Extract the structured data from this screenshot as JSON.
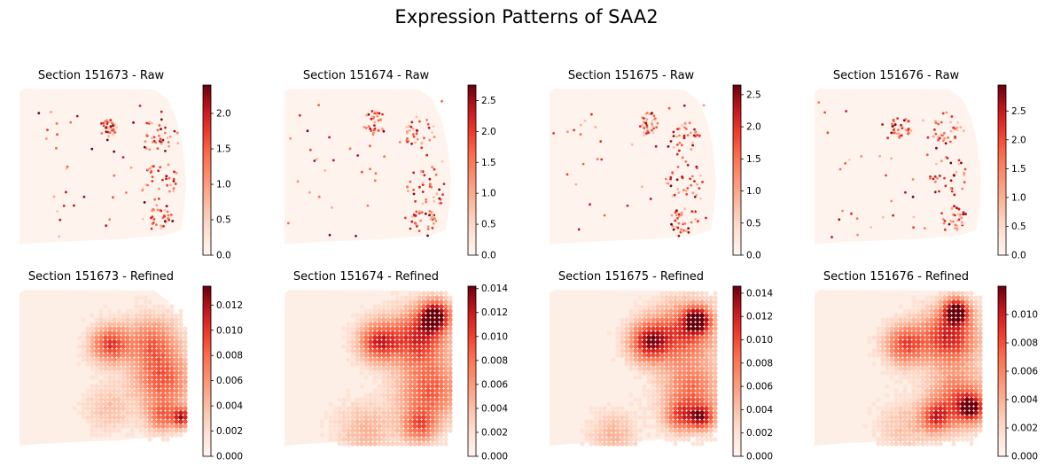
{
  "figure": {
    "title": "Expression Patterns of SAA2"
  },
  "colors": {
    "colormap": "Reds",
    "low": "#fff5f0",
    "high": "#67000d"
  },
  "chart_data": [
    {
      "type": "heatmap",
      "title": "Section 151673 - Raw",
      "colorbar_range": [
        0,
        2.4
      ],
      "colorbar_ticks": [
        "0.0",
        "0.5",
        "1.0",
        "1.5",
        "2.0"
      ]
    },
    {
      "type": "heatmap",
      "title": "Section 151674 - Raw",
      "colorbar_range": [
        0,
        2.75
      ],
      "colorbar_ticks": [
        "0.0",
        "0.5",
        "1.0",
        "1.5",
        "2.0",
        "2.5"
      ]
    },
    {
      "type": "heatmap",
      "title": "Section 151675 - Raw",
      "colorbar_range": [
        0,
        2.65
      ],
      "colorbar_ticks": [
        "0.0",
        "0.5",
        "1.0",
        "1.5",
        "2.0",
        "2.5"
      ]
    },
    {
      "type": "heatmap",
      "title": "Section 151676 - Raw",
      "colorbar_range": [
        0,
        2.95
      ],
      "colorbar_ticks": [
        "0.0",
        "0.5",
        "1.0",
        "1.5",
        "2.0",
        "2.5"
      ]
    },
    {
      "type": "heatmap",
      "title": "Section 151673 - Refined",
      "colorbar_range": [
        0,
        0.0135
      ],
      "colorbar_ticks": [
        "0.000",
        "0.002",
        "0.004",
        "0.006",
        "0.008",
        "0.010",
        "0.012"
      ]
    },
    {
      "type": "heatmap",
      "title": "Section 151674 - Refined",
      "colorbar_range": [
        0,
        0.0142
      ],
      "colorbar_ticks": [
        "0.000",
        "0.002",
        "0.004",
        "0.006",
        "0.008",
        "0.010",
        "0.012",
        "0.014"
      ]
    },
    {
      "type": "heatmap",
      "title": "Section 151675 - Refined",
      "colorbar_range": [
        0,
        0.0146
      ],
      "colorbar_ticks": [
        "0.000",
        "0.002",
        "0.004",
        "0.006",
        "0.008",
        "0.010",
        "0.012",
        "0.014"
      ]
    },
    {
      "type": "heatmap",
      "title": "Section 151676 - Refined",
      "colorbar_range": [
        0,
        0.012
      ],
      "colorbar_ticks": [
        "0.000",
        "0.002",
        "0.004",
        "0.006",
        "0.008",
        "0.010"
      ]
    }
  ]
}
